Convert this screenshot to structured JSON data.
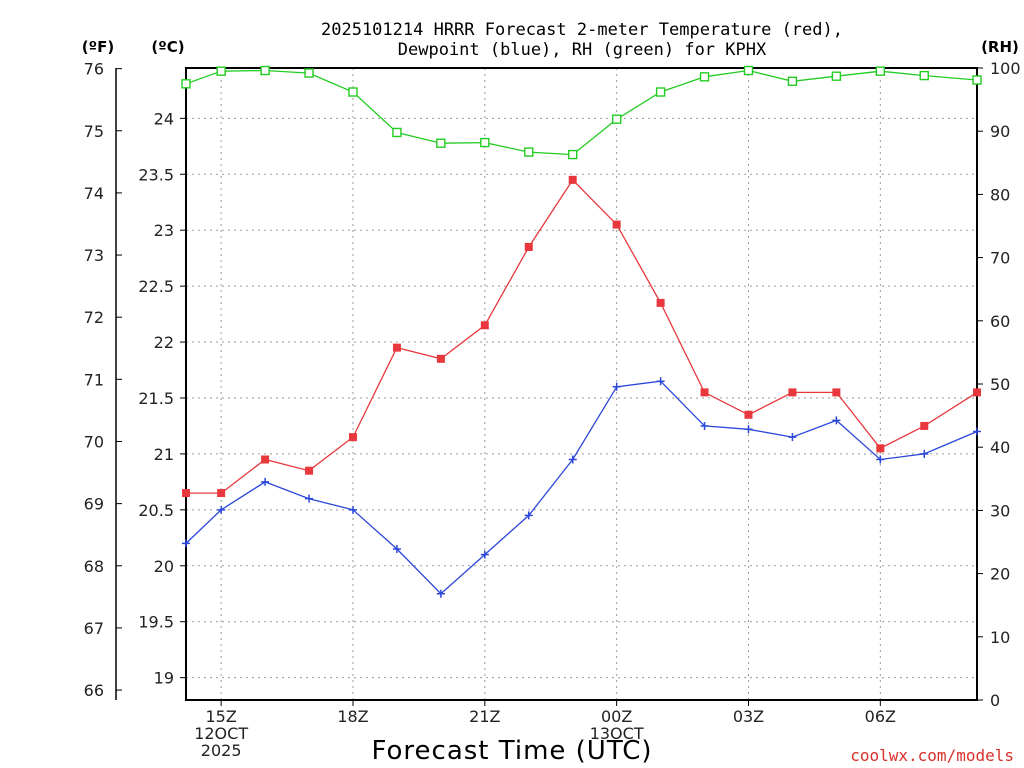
{
  "chart_data": {
    "type": "line",
    "title_lines": [
      "2025101214 HRRR Forecast 2-meter Temperature (red),",
      "Dewpoint (blue), RH (green) for KPHX"
    ],
    "xlabel": "Forecast Time (UTC)",
    "credit": "coolwx.com/models",
    "units": {
      "fahrenheit": "(ºF)",
      "celsius": "(ºC)",
      "rh": "(RH)"
    },
    "x_range_hours": [
      14.2,
      32.2
    ],
    "x_ticks": [
      {
        "hour": 15,
        "lines": [
          "15Z",
          "12OCT",
          "2025"
        ]
      },
      {
        "hour": 18,
        "lines": [
          "18Z"
        ]
      },
      {
        "hour": 21,
        "lines": [
          "21Z"
        ]
      },
      {
        "hour": 24,
        "lines": [
          "00Z",
          "13OCT"
        ]
      },
      {
        "hour": 27,
        "lines": [
          "03Z"
        ]
      },
      {
        "hour": 30,
        "lines": [
          "06Z"
        ]
      }
    ],
    "celsius_axis": {
      "range": [
        18.8,
        24.45
      ],
      "ticks": [
        "19",
        "19.5",
        "20",
        "20.5",
        "21",
        "21.5",
        "22",
        "22.5",
        "23",
        "23.5",
        "24"
      ]
    },
    "fahrenheit_axis": {
      "range": [
        65.84,
        76.01
      ],
      "ticks": [
        "66",
        "67",
        "68",
        "69",
        "70",
        "71",
        "72",
        "73",
        "74",
        "75",
        "76"
      ]
    },
    "rh_axis": {
      "range": [
        0,
        100
      ],
      "ticks": [
        "0",
        "10",
        "20",
        "30",
        "40",
        "50",
        "60",
        "70",
        "80",
        "90",
        "100"
      ]
    },
    "hours": [
      14.2,
      15,
      16,
      17,
      18,
      19,
      20,
      21,
      22,
      23,
      24,
      25,
      26,
      27,
      28,
      29,
      30,
      31,
      32.2
    ],
    "series": [
      {
        "name": "Temperature",
        "axis": "celsius",
        "color": "#e8383d",
        "marker": "filled-square",
        "values": [
          20.65,
          20.65,
          20.95,
          20.85,
          21.15,
          21.95,
          21.85,
          22.15,
          22.85,
          23.45,
          23.05,
          22.35,
          21.55,
          21.35,
          21.55,
          21.55,
          21.05,
          21.25,
          21.55
        ]
      },
      {
        "name": "Dewpoint",
        "axis": "celsius",
        "color": "#2b47d9",
        "marker": "plus",
        "values": [
          20.2,
          20.5,
          20.75,
          20.6,
          20.5,
          20.15,
          19.75,
          20.1,
          20.45,
          20.95,
          21.6,
          21.65,
          21.25,
          21.22,
          21.15,
          21.3,
          20.95,
          21.0,
          21.2
        ]
      },
      {
        "name": "RH",
        "axis": "rh",
        "color": "#22cc22",
        "marker": "hollow-square",
        "values": [
          97.5,
          99.5,
          99.6,
          99.2,
          96.2,
          89.8,
          88.1,
          88.2,
          86.7,
          86.3,
          91.9,
          96.2,
          98.6,
          99.6,
          97.9,
          98.7,
          99.5,
          98.8,
          98.1
        ]
      }
    ]
  }
}
